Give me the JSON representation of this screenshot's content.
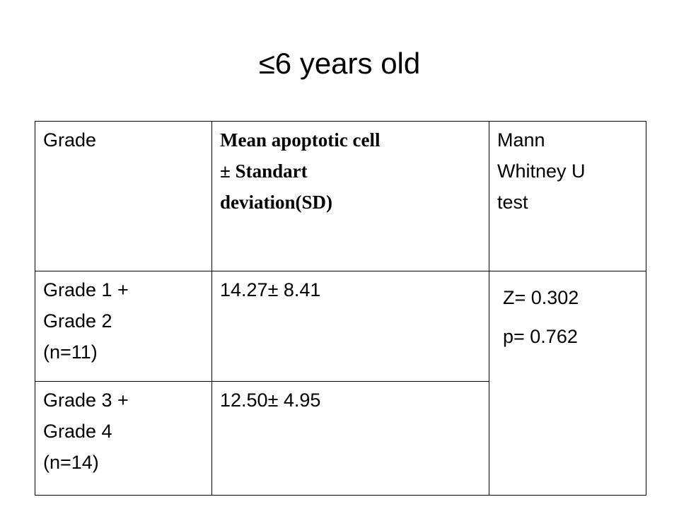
{
  "title": "≤6 years old",
  "table": {
    "headers": {
      "grade": "Grade",
      "mean": [
        "Mean apoptotic cell",
        "± Standart",
        "deviation(SD)"
      ],
      "test": [
        "Mann",
        "Whitney U",
        "test"
      ]
    },
    "rows": [
      {
        "group": [
          "Grade 1 +",
          "Grade 2",
          "(n=11)"
        ],
        "mean_sd": "14.27± 8.41"
      },
      {
        "group": [
          "Grade 3 +",
          "Grade 4",
          "(n=14)"
        ],
        "mean_sd": "12.50± 4.95"
      }
    ],
    "statistics": {
      "z": "Z= 0.302",
      "p": "p= 0.762"
    }
  }
}
